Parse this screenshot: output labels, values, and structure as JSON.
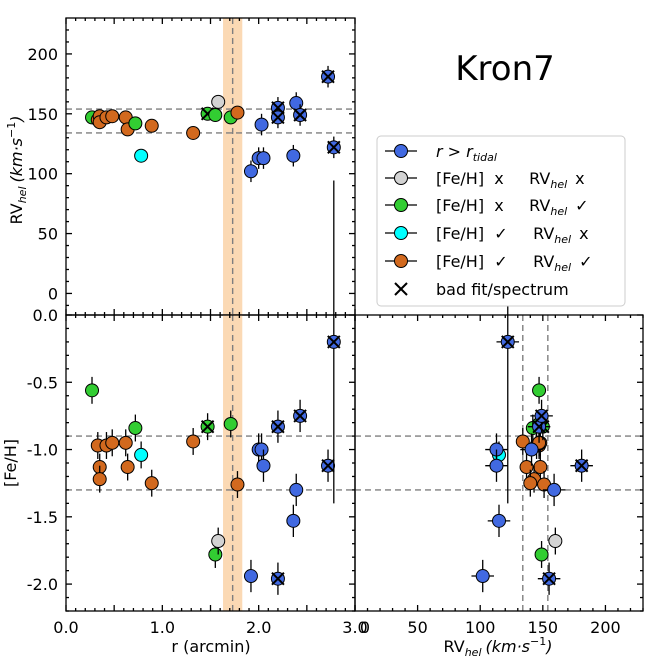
{
  "chart_data": {
    "type": "scatter",
    "title": "Kron7",
    "colors": {
      "outside_tidal": "#4169e1",
      "feh_x_rv_x": "#d3d3d3",
      "feh_x_rv_ok": "#32cd32",
      "feh_ok_rv_x": "#00ffff",
      "feh_ok_rv_ok": "#d2691e",
      "band": "#fbd9b4",
      "dashed": "#7f7f7f"
    },
    "legend": {
      "outside_tidal": "r > r",
      "outside_tidal_sub": "tidal",
      "feh_x_rv_x": "[Fe/H]  x     RV",
      "feh_x_rv_x_sub": "hel",
      "feh_x_rv_x_mark": "x",
      "feh_x_rv_ok": "[Fe/H]  x     RV",
      "feh_x_rv_ok_sub": "hel",
      "feh_x_rv_ok_mark": "✓",
      "feh_ok_rv_x": "[Fe/H]  ✓     RV",
      "feh_ok_rv_x_sub": "hel",
      "feh_ok_rv_x_mark": "x",
      "feh_ok_rv_ok": "[Fe/H]  ✓     RV",
      "feh_ok_rv_ok_sub": "hel",
      "feh_ok_rv_ok_mark": "✓",
      "bad_fit": "bad fit/spectrum"
    },
    "panels": {
      "top_left": {
        "xlim": [
          0,
          3
        ],
        "ylim": [
          -18,
          230
        ],
        "ylabel_main": "RV",
        "ylabel_sub": "hel",
        "ylabel_unit": "(km·s",
        "ylabel_exp": "−1",
        "ylabel_close": ")",
        "yticks": [
          0,
          50,
          100,
          150,
          200
        ],
        "ytick_labels": [
          "0",
          "50",
          "100",
          "150",
          "200"
        ]
      },
      "bottom_left": {
        "xlim": [
          0,
          3
        ],
        "ylim": [
          -2.2,
          0
        ],
        "xlabel": "r (arcmin)",
        "ylabel": "[Fe/H]",
        "xticks": [
          0,
          1,
          2,
          3
        ],
        "xtick_labels": [
          "0.0",
          "1.0",
          "2.0",
          "3.0"
        ],
        "yticks": [
          0,
          -0.5,
          -1,
          -1.5,
          -2
        ],
        "ytick_labels": [
          "0.0",
          "-0.5",
          "-1.0",
          "-1.5",
          "-2.0"
        ]
      },
      "bottom_right": {
        "xlim": [
          0,
          230
        ],
        "ylim": [
          -2.2,
          0
        ],
        "xlabel_main": "RV",
        "xlabel_sub": "hel",
        "xlabel_unit": "(km·s",
        "xlabel_exp": "−1",
        "xlabel_close": ")",
        "xticks": [
          0,
          50,
          100,
          150,
          200
        ],
        "xtick_labels": [
          "0",
          "50",
          "100",
          "150",
          "200"
        ]
      }
    },
    "rv_band": [
      134,
      154
    ],
    "feh_band": [
      -1.3,
      -0.9
    ],
    "r_tidal_band": [
      1.63,
      1.83
    ],
    "r_tidal_center": 1.73,
    "stars": [
      {
        "r": 0.27,
        "rv": 147,
        "feh": -0.56,
        "cat": "feh_x_rv_ok",
        "bad": false
      },
      {
        "r": 0.33,
        "rv": 145,
        "feh": -0.97,
        "cat": "feh_ok_rv_ok",
        "bad": false
      },
      {
        "r": 0.35,
        "rv": 148,
        "feh": -1.13,
        "cat": "feh_ok_rv_ok",
        "bad": false
      },
      {
        "r": 0.35,
        "rv": 143,
        "feh": -1.22,
        "cat": "feh_ok_rv_ok",
        "bad": false
      },
      {
        "r": 0.42,
        "rv": 147,
        "feh": -0.97,
        "cat": "feh_ok_rv_ok",
        "bad": false
      },
      {
        "r": 0.48,
        "rv": 148,
        "feh": -0.95,
        "cat": "feh_ok_rv_ok",
        "bad": false
      },
      {
        "r": 0.62,
        "rv": 147,
        "feh": -0.95,
        "cat": "feh_ok_rv_ok",
        "bad": false
      },
      {
        "r": 0.64,
        "rv": 137,
        "feh": -1.13,
        "cat": "feh_ok_rv_ok",
        "bad": false
      },
      {
        "r": 0.72,
        "rv": 142,
        "feh": -0.84,
        "cat": "feh_x_rv_ok",
        "bad": false
      },
      {
        "r": 0.78,
        "rv": 115,
        "feh": -1.04,
        "cat": "feh_ok_rv_x",
        "bad": false
      },
      {
        "r": 0.89,
        "rv": 140,
        "feh": -1.25,
        "cat": "feh_ok_rv_ok",
        "bad": false
      },
      {
        "r": 1.32,
        "rv": 134,
        "feh": -0.94,
        "cat": "feh_ok_rv_ok",
        "bad": false
      },
      {
        "r": 1.47,
        "rv": 150,
        "feh": -0.83,
        "cat": "feh_x_rv_ok",
        "bad": true
      },
      {
        "r": 1.55,
        "rv": 149,
        "feh": -1.78,
        "cat": "feh_x_rv_ok",
        "bad": false
      },
      {
        "r": 1.58,
        "rv": 160,
        "feh": -1.68,
        "cat": "feh_x_rv_x",
        "bad": false
      },
      {
        "r": 1.71,
        "rv": 147,
        "feh": -0.81,
        "cat": "feh_x_rv_ok",
        "bad": false
      },
      {
        "r": 1.78,
        "rv": 151,
        "feh": -1.26,
        "cat": "feh_ok_rv_ok",
        "bad": false
      },
      {
        "r": 1.92,
        "rv": 102,
        "feh": -1.94,
        "cat": "outside_tidal",
        "bad": false
      },
      {
        "r": 2.0,
        "rv": 113,
        "feh": -1.0,
        "cat": "outside_tidal",
        "bad": false
      },
      {
        "r": 2.03,
        "rv": 141,
        "feh": -1.0,
        "cat": "outside_tidal",
        "bad": false
      },
      {
        "r": 2.05,
        "rv": 113,
        "feh": -1.12,
        "cat": "outside_tidal",
        "bad": false
      },
      {
        "r": 2.2,
        "rv": 155,
        "feh": -1.96,
        "cat": "outside_tidal",
        "bad": true
      },
      {
        "r": 2.2,
        "rv": 147,
        "feh": -0.83,
        "cat": "outside_tidal",
        "bad": true
      },
      {
        "r": 2.36,
        "rv": 115,
        "feh": -1.53,
        "cat": "outside_tidal",
        "bad": false
      },
      {
        "r": 2.39,
        "rv": 159,
        "feh": -1.3,
        "cat": "outside_tidal",
        "bad": false
      },
      {
        "r": 2.43,
        "rv": 149,
        "feh": -0.75,
        "cat": "outside_tidal",
        "bad": true
      },
      {
        "r": 2.72,
        "rv": 181,
        "feh": -1.12,
        "cat": "outside_tidal",
        "bad": true
      },
      {
        "r": 2.78,
        "rv": 122,
        "feh": -0.2,
        "cat": "outside_tidal",
        "bad": true
      }
    ]
  }
}
